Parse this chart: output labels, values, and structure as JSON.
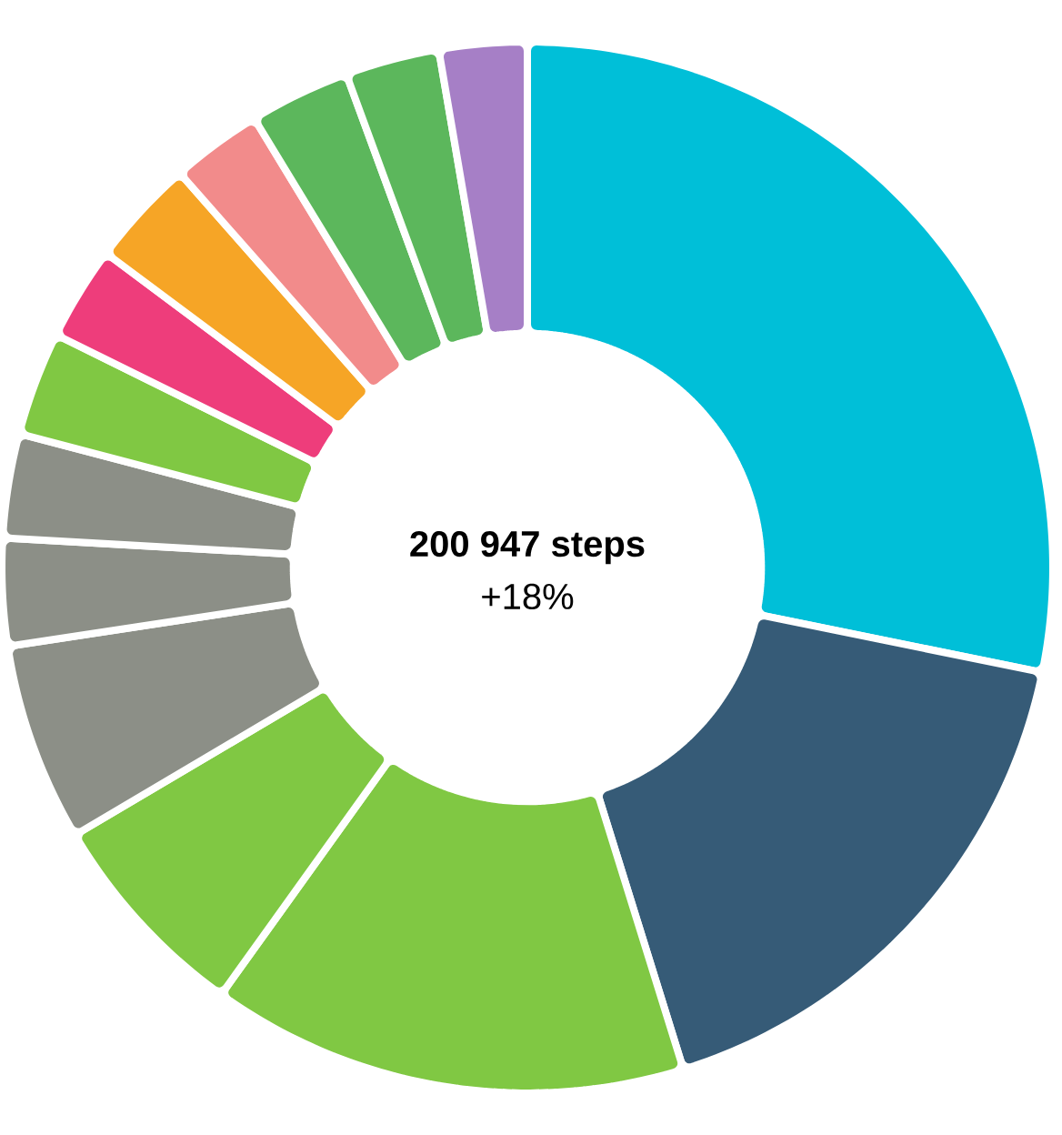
{
  "chart_data": {
    "type": "donut",
    "title": "200 947 steps",
    "subtitle": "+18%",
    "categories": [
      null,
      null,
      null,
      null,
      null,
      null,
      null,
      null,
      null,
      null,
      null,
      null,
      null,
      null
    ],
    "values": [
      28.2,
      17.0,
      14.7,
      6.6,
      6.1,
      3.3,
      3.2,
      3.2,
      2.9,
      3.3,
      2.8,
      3.1,
      2.9,
      2.7
    ],
    "colors": [
      "#00bfd8",
      "#365b77",
      "#80c843",
      "#80c843",
      "#8c8f87",
      "#8c8f87",
      "#8c8f87",
      "#80c843",
      "#ee3d7b",
      "#f6a526",
      "#f28b8b",
      "#5cb75c",
      "#5cb75c",
      "#a67fc6"
    ]
  }
}
